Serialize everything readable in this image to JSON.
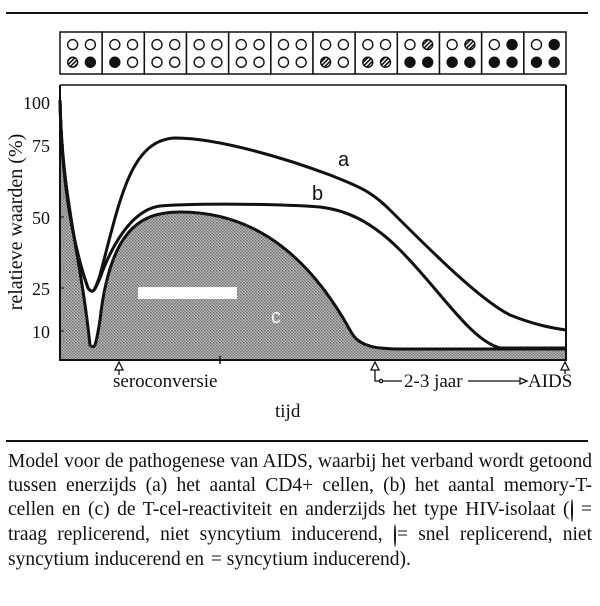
{
  "chart_data": {
    "type": "line",
    "title": "",
    "xlabel": "tijd",
    "ylabel": "relatieve waarden (%)",
    "ylim": [
      0,
      100
    ],
    "yticks": [
      10,
      25,
      50,
      75,
      100
    ],
    "x_markers": [
      "seroconversie",
      "2-3 jaar",
      "AIDS"
    ],
    "x_annotation": "2-3 jaar",
    "x": [
      0,
      5,
      9,
      12,
      15,
      20,
      30,
      45,
      60,
      65,
      75,
      85,
      100
    ],
    "series": [
      {
        "name": "a",
        "label": "a",
        "description": "aantal CD4+ cellen",
        "values": [
          90,
          50,
          25,
          35,
          60,
          76,
          76,
          70,
          62,
          55,
          35,
          20,
          10
        ]
      },
      {
        "name": "b",
        "label": "b",
        "description": "aantal memory-T-cellen",
        "values": [
          90,
          50,
          25,
          33,
          48,
          53,
          54,
          53,
          52,
          45,
          20,
          5,
          4
        ]
      },
      {
        "name": "c",
        "label": "c",
        "description": "T-cel-reactiviteit (shaded)",
        "values": [
          90,
          40,
          6,
          25,
          40,
          50,
          48,
          30,
          5,
          4,
          4,
          4,
          4
        ]
      }
    ],
    "isolate_strip": {
      "legend": {
        "open": "traag replicerend, niet syncytium inducerend",
        "hatched": "snel replicerend, niet syncytium inducerend",
        "solid": "syncytium inducerend"
      },
      "boxes": [
        [
          "open",
          "open",
          "hatched",
          "solid"
        ],
        [
          "open",
          "open",
          "solid",
          "open"
        ],
        [
          "open",
          "open",
          "open",
          "open"
        ],
        [
          "open",
          "open",
          "open",
          "open"
        ],
        [
          "open",
          "open",
          "open",
          "open"
        ],
        [
          "open",
          "open",
          "open",
          "open"
        ],
        [
          "open",
          "open",
          "hatched",
          "open"
        ],
        [
          "open",
          "open",
          "hatched",
          "hatched"
        ],
        [
          "open",
          "hatched",
          "solid",
          "solid"
        ],
        [
          "open",
          "hatched",
          "solid",
          "solid"
        ],
        [
          "open",
          "solid",
          "solid",
          "solid"
        ],
        [
          "open",
          "solid",
          "solid",
          "solid"
        ]
      ]
    }
  },
  "labels": {
    "y_axis": "relatieve waarden (%)",
    "x_axis": "tijd",
    "tick_100": "100",
    "tick_75": "75",
    "tick_50": "50",
    "tick_25": "25",
    "tick_10": "10",
    "curve_a": "a",
    "curve_b": "b",
    "curve_c": "c",
    "seroconversie": "seroconversie",
    "duration": "2-3 jaar",
    "aids": "AIDS"
  },
  "caption": {
    "part1": "Model voor de pathogenese van AIDS, waarbij het verband wordt getoond tussen enerzijds (a) het aantal CD4+ cellen, (b) het aantal memory-T-cellen en (c) de T-cel-reactiviteit en anderzijds het type HIV-isolaat (",
    "part2": " = traag replicerend, niet syncytium inducerend, ",
    "part3": " = snel replicerend, niet syncytium inducerend en ",
    "part4": " = syncytium inducerend)."
  }
}
